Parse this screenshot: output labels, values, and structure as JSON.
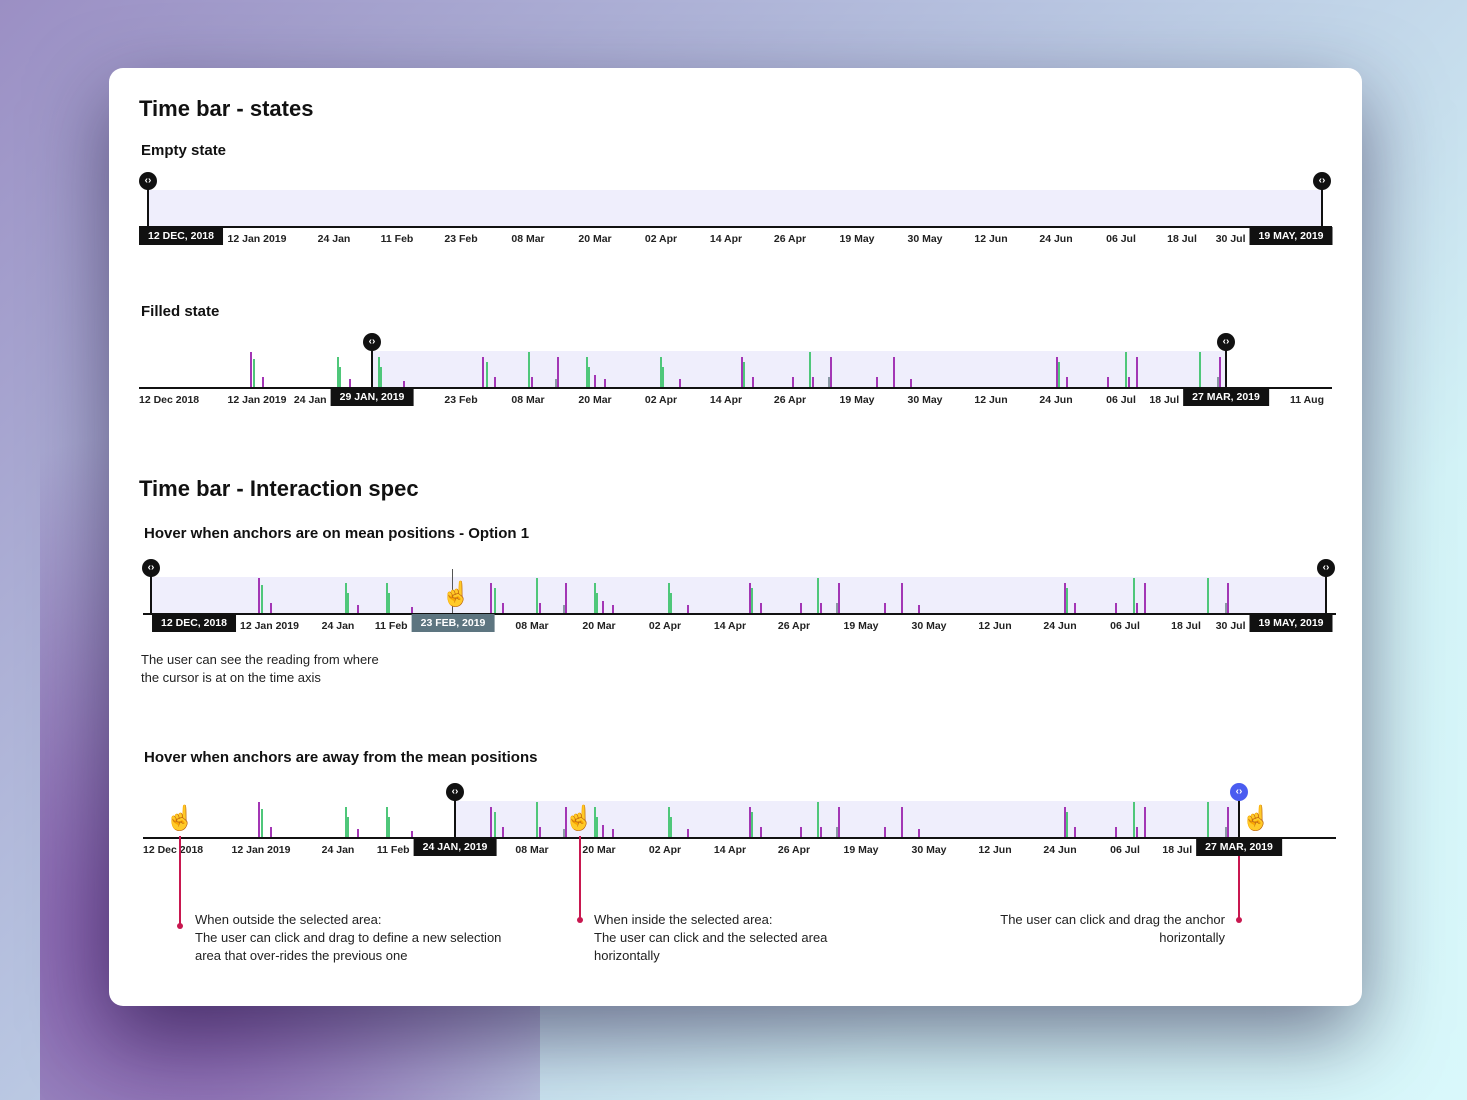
{
  "titles": {
    "states": "Time bar - states",
    "empty": "Empty state",
    "filled": "Filled state",
    "spec": "Time bar - Interaction spec",
    "hover1": "Hover when anchors are on mean positions - Option 1",
    "hover2": "Hover when anchors are away from the mean positions"
  },
  "ticks": [
    "12 Dec 2018",
    "12 Jan 2019",
    "24 Jan",
    "11 Feb",
    "23 Feb",
    "08 Mar",
    "20 Mar",
    "02 Apr",
    "14 Apr",
    "26 Apr",
    "19 May",
    "30 May",
    "12 Jun",
    "24 Jun",
    "06 Jul",
    "18 Jul",
    "30 Jul",
    "11 Aug"
  ],
  "colors": {
    "purple": "#a336b5",
    "green": "#4fc77a",
    "gray": "#8a9aa5",
    "band": "#efeefc",
    "accent": "#4a5cf0",
    "annotation": "#c8174f"
  },
  "events": [
    [
      29.2,
      35,
      "purple"
    ],
    [
      30,
      28,
      "green"
    ],
    [
      32.4,
      10,
      "purple"
    ],
    [
      52.1,
      30,
      "green"
    ],
    [
      52.6,
      20,
      "green"
    ],
    [
      55.3,
      8,
      "purple"
    ],
    [
      62.9,
      30,
      "green"
    ],
    [
      63.4,
      20,
      "green"
    ],
    [
      69.5,
      6,
      "purple"
    ],
    [
      90.3,
      30,
      "purple"
    ],
    [
      91.3,
      25,
      "green"
    ],
    [
      93.4,
      10,
      "purple"
    ],
    [
      102.4,
      35,
      "green"
    ],
    [
      103.2,
      10,
      "purple"
    ],
    [
      109.5,
      8,
      "gray"
    ],
    [
      110,
      30,
      "purple"
    ],
    [
      117.6,
      30,
      "green"
    ],
    [
      118.2,
      20,
      "green"
    ],
    [
      119.7,
      12,
      "purple"
    ],
    [
      122.4,
      8,
      "purple"
    ],
    [
      137.1,
      30,
      "green"
    ],
    [
      137.6,
      20,
      "green"
    ],
    [
      142.1,
      8,
      "purple"
    ],
    [
      158.4,
      30,
      "purple"
    ],
    [
      158.9,
      25,
      "green"
    ],
    [
      161.3,
      10,
      "purple"
    ],
    [
      171.8,
      10,
      "purple"
    ],
    [
      176.3,
      35,
      "green"
    ],
    [
      177.1,
      10,
      "purple"
    ],
    [
      181.3,
      10,
      "gray"
    ],
    [
      181.8,
      30,
      "purple"
    ],
    [
      193.9,
      10,
      "purple"
    ],
    [
      198.4,
      30,
      "purple"
    ],
    [
      202.9,
      8,
      "purple"
    ],
    [
      241.3,
      30,
      "purple"
    ],
    [
      241.8,
      25,
      "green"
    ],
    [
      243.9,
      10,
      "purple"
    ],
    [
      254.7,
      10,
      "purple"
    ],
    [
      259.5,
      35,
      "green"
    ],
    [
      260.3,
      10,
      "purple"
    ],
    [
      262.4,
      30,
      "purple"
    ],
    [
      278.9,
      35,
      "green"
    ],
    [
      283.7,
      10,
      "gray"
    ],
    [
      284.2,
      30,
      "purple"
    ]
  ],
  "bars": {
    "empty": {
      "start_label": "12 DEC, 2018",
      "end_label": "19 MAY, 2019"
    },
    "filled": {
      "start_label": "29 JAN, 2019",
      "end_label": "27 MAR, 2019"
    },
    "hover1": {
      "start_label": "12 DEC, 2018",
      "end_label": "19 MAY, 2019",
      "hover_label": "23 FEB, 2019"
    },
    "hover2": {
      "start_label": "24 JAN, 2019",
      "end_label": "27 MAR, 2019"
    }
  },
  "notes": {
    "hover1": [
      "The user can see the reading from where",
      "the cursor is at on the time axis"
    ],
    "outside": [
      "When outside the selected area:",
      "The user can click and drag to define a new selection",
      "area that over-rides the previous one"
    ],
    "inside": [
      "When inside the selected area:",
      "The user can click and the selected area",
      "horizontally"
    ],
    "anchor": [
      "The user can click and drag the anchor",
      "horizontally"
    ]
  }
}
